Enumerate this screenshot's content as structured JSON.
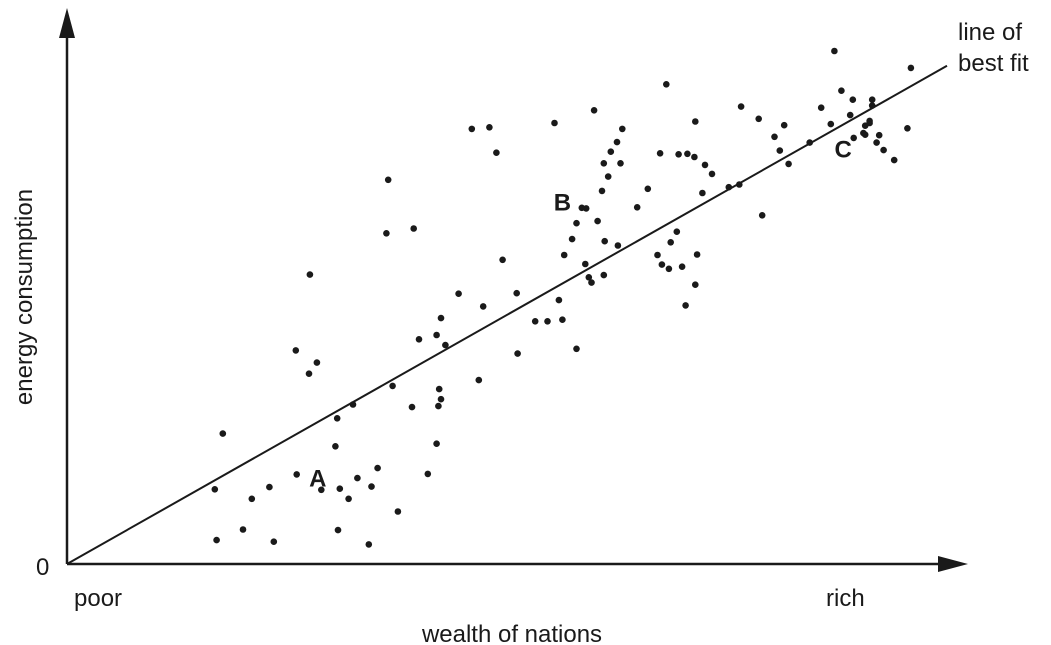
{
  "chart_data": {
    "type": "scatter",
    "title": "",
    "xlabel": "wealth of nations",
    "ylabel": "energy consumption",
    "x_tick_left": "poor",
    "x_tick_right": "rich",
    "origin_label": "0",
    "xlim": [
      0,
      100
    ],
    "ylim": [
      0,
      100
    ],
    "grid": false,
    "trendline": {
      "label_line1": "line of",
      "label_line2": "best fit",
      "x": [
        0,
        100
      ],
      "y": [
        0,
        94
      ]
    },
    "annotations": [
      {
        "text": "A",
        "x": 28.5,
        "y": 16.3
      },
      {
        "text": "B",
        "x": 56.3,
        "y": 68.4
      },
      {
        "text": "C",
        "x": 88.2,
        "y": 78.4
      }
    ],
    "points": [
      {
        "x": 17.0,
        "y": 4.5
      },
      {
        "x": 20.0,
        "y": 6.5
      },
      {
        "x": 23.5,
        "y": 4.2
      },
      {
        "x": 30.8,
        "y": 6.4
      },
      {
        "x": 34.3,
        "y": 3.7
      },
      {
        "x": 37.6,
        "y": 9.9
      },
      {
        "x": 16.8,
        "y": 14.1
      },
      {
        "x": 21.0,
        "y": 12.3
      },
      {
        "x": 23.0,
        "y": 14.5
      },
      {
        "x": 26.1,
        "y": 16.9
      },
      {
        "x": 28.9,
        "y": 14.0
      },
      {
        "x": 31.0,
        "y": 14.2
      },
      {
        "x": 32.0,
        "y": 12.3
      },
      {
        "x": 33.0,
        "y": 16.2
      },
      {
        "x": 34.6,
        "y": 14.6
      },
      {
        "x": 35.3,
        "y": 18.1
      },
      {
        "x": 30.5,
        "y": 22.2
      },
      {
        "x": 41.0,
        "y": 17.0
      },
      {
        "x": 42.0,
        "y": 22.7
      },
      {
        "x": 17.7,
        "y": 24.6
      },
      {
        "x": 30.7,
        "y": 27.5
      },
      {
        "x": 32.5,
        "y": 30.1
      },
      {
        "x": 37.0,
        "y": 33.6
      },
      {
        "x": 39.2,
        "y": 29.6
      },
      {
        "x": 42.2,
        "y": 29.8
      },
      {
        "x": 42.5,
        "y": 31.1
      },
      {
        "x": 42.3,
        "y": 33.0
      },
      {
        "x": 26.0,
        "y": 40.3
      },
      {
        "x": 27.5,
        "y": 35.9
      },
      {
        "x": 28.4,
        "y": 38.0
      },
      {
        "x": 40.0,
        "y": 42.4
      },
      {
        "x": 42.0,
        "y": 43.2
      },
      {
        "x": 42.5,
        "y": 46.4
      },
      {
        "x": 44.5,
        "y": 51.0
      },
      {
        "x": 43.0,
        "y": 41.3
      },
      {
        "x": 46.8,
        "y": 34.7
      },
      {
        "x": 51.2,
        "y": 39.7
      },
      {
        "x": 56.3,
        "y": 46.1
      },
      {
        "x": 57.9,
        "y": 40.6
      },
      {
        "x": 49.5,
        "y": 57.4
      },
      {
        "x": 51.1,
        "y": 51.1
      },
      {
        "x": 53.2,
        "y": 45.8
      },
      {
        "x": 54.6,
        "y": 45.8
      },
      {
        "x": 55.9,
        "y": 49.8
      },
      {
        "x": 56.5,
        "y": 58.3
      },
      {
        "x": 57.4,
        "y": 61.3
      },
      {
        "x": 57.9,
        "y": 64.3
      },
      {
        "x": 58.5,
        "y": 67.2
      },
      {
        "x": 59.0,
        "y": 67.1
      },
      {
        "x": 58.9,
        "y": 56.6
      },
      {
        "x": 59.6,
        "y": 53.1
      },
      {
        "x": 59.3,
        "y": 54.1
      },
      {
        "x": 61.0,
        "y": 54.5
      },
      {
        "x": 61.1,
        "y": 60.9
      },
      {
        "x": 60.3,
        "y": 64.7
      },
      {
        "x": 60.8,
        "y": 70.4
      },
      {
        "x": 61.5,
        "y": 73.1
      },
      {
        "x": 61.0,
        "y": 75.6
      },
      {
        "x": 62.5,
        "y": 79.6
      },
      {
        "x": 63.1,
        "y": 82.1
      },
      {
        "x": 61.8,
        "y": 77.8
      },
      {
        "x": 62.9,
        "y": 75.6
      },
      {
        "x": 64.8,
        "y": 67.3
      },
      {
        "x": 62.6,
        "y": 60.1
      },
      {
        "x": 48.8,
        "y": 77.6
      },
      {
        "x": 46.0,
        "y": 82.1
      },
      {
        "x": 48.0,
        "y": 82.4
      },
      {
        "x": 55.4,
        "y": 83.2
      },
      {
        "x": 59.9,
        "y": 85.6
      },
      {
        "x": 36.5,
        "y": 72.5
      },
      {
        "x": 36.3,
        "y": 62.4
      },
      {
        "x": 27.6,
        "y": 54.6
      },
      {
        "x": 39.4,
        "y": 63.3
      },
      {
        "x": 47.3,
        "y": 48.6
      },
      {
        "x": 66.0,
        "y": 70.8
      },
      {
        "x": 67.4,
        "y": 77.5
      },
      {
        "x": 69.5,
        "y": 77.3
      },
      {
        "x": 71.3,
        "y": 76.8
      },
      {
        "x": 72.5,
        "y": 75.3
      },
      {
        "x": 70.5,
        "y": 77.4
      },
      {
        "x": 72.2,
        "y": 70.0
      },
      {
        "x": 73.3,
        "y": 73.6
      },
      {
        "x": 75.2,
        "y": 71.1
      },
      {
        "x": 76.4,
        "y": 71.6
      },
      {
        "x": 68.6,
        "y": 60.7
      },
      {
        "x": 69.3,
        "y": 62.7
      },
      {
        "x": 68.4,
        "y": 55.7
      },
      {
        "x": 69.9,
        "y": 56.1
      },
      {
        "x": 71.6,
        "y": 58.4
      },
      {
        "x": 67.1,
        "y": 58.3
      },
      {
        "x": 67.6,
        "y": 56.5
      },
      {
        "x": 71.4,
        "y": 52.7
      },
      {
        "x": 70.3,
        "y": 48.8
      },
      {
        "x": 71.4,
        "y": 83.5
      },
      {
        "x": 68.1,
        "y": 90.5
      },
      {
        "x": 76.6,
        "y": 86.3
      },
      {
        "x": 78.6,
        "y": 84.0
      },
      {
        "x": 79.0,
        "y": 65.8
      },
      {
        "x": 80.4,
        "y": 80.6
      },
      {
        "x": 81.0,
        "y": 78.0
      },
      {
        "x": 82.0,
        "y": 75.5
      },
      {
        "x": 81.5,
        "y": 82.8
      },
      {
        "x": 84.4,
        "y": 79.5
      },
      {
        "x": 85.7,
        "y": 86.1
      },
      {
        "x": 86.8,
        "y": 83.0
      },
      {
        "x": 87.2,
        "y": 96.8
      },
      {
        "x": 88.0,
        "y": 89.3
      },
      {
        "x": 89.3,
        "y": 87.6
      },
      {
        "x": 89.0,
        "y": 84.7
      },
      {
        "x": 89.4,
        "y": 80.4
      },
      {
        "x": 90.5,
        "y": 81.3
      },
      {
        "x": 91.2,
        "y": 83.2
      },
      {
        "x": 91.5,
        "y": 87.6
      },
      {
        "x": 91.5,
        "y": 86.5
      },
      {
        "x": 90.7,
        "y": 82.7
      },
      {
        "x": 92.0,
        "y": 79.5
      },
      {
        "x": 92.3,
        "y": 80.9
      },
      {
        "x": 92.8,
        "y": 78.1
      },
      {
        "x": 94.0,
        "y": 76.2
      },
      {
        "x": 95.5,
        "y": 82.2
      },
      {
        "x": 95.9,
        "y": 93.6
      },
      {
        "x": 91.2,
        "y": 83.6
      },
      {
        "x": 90.7,
        "y": 81.0
      }
    ]
  }
}
